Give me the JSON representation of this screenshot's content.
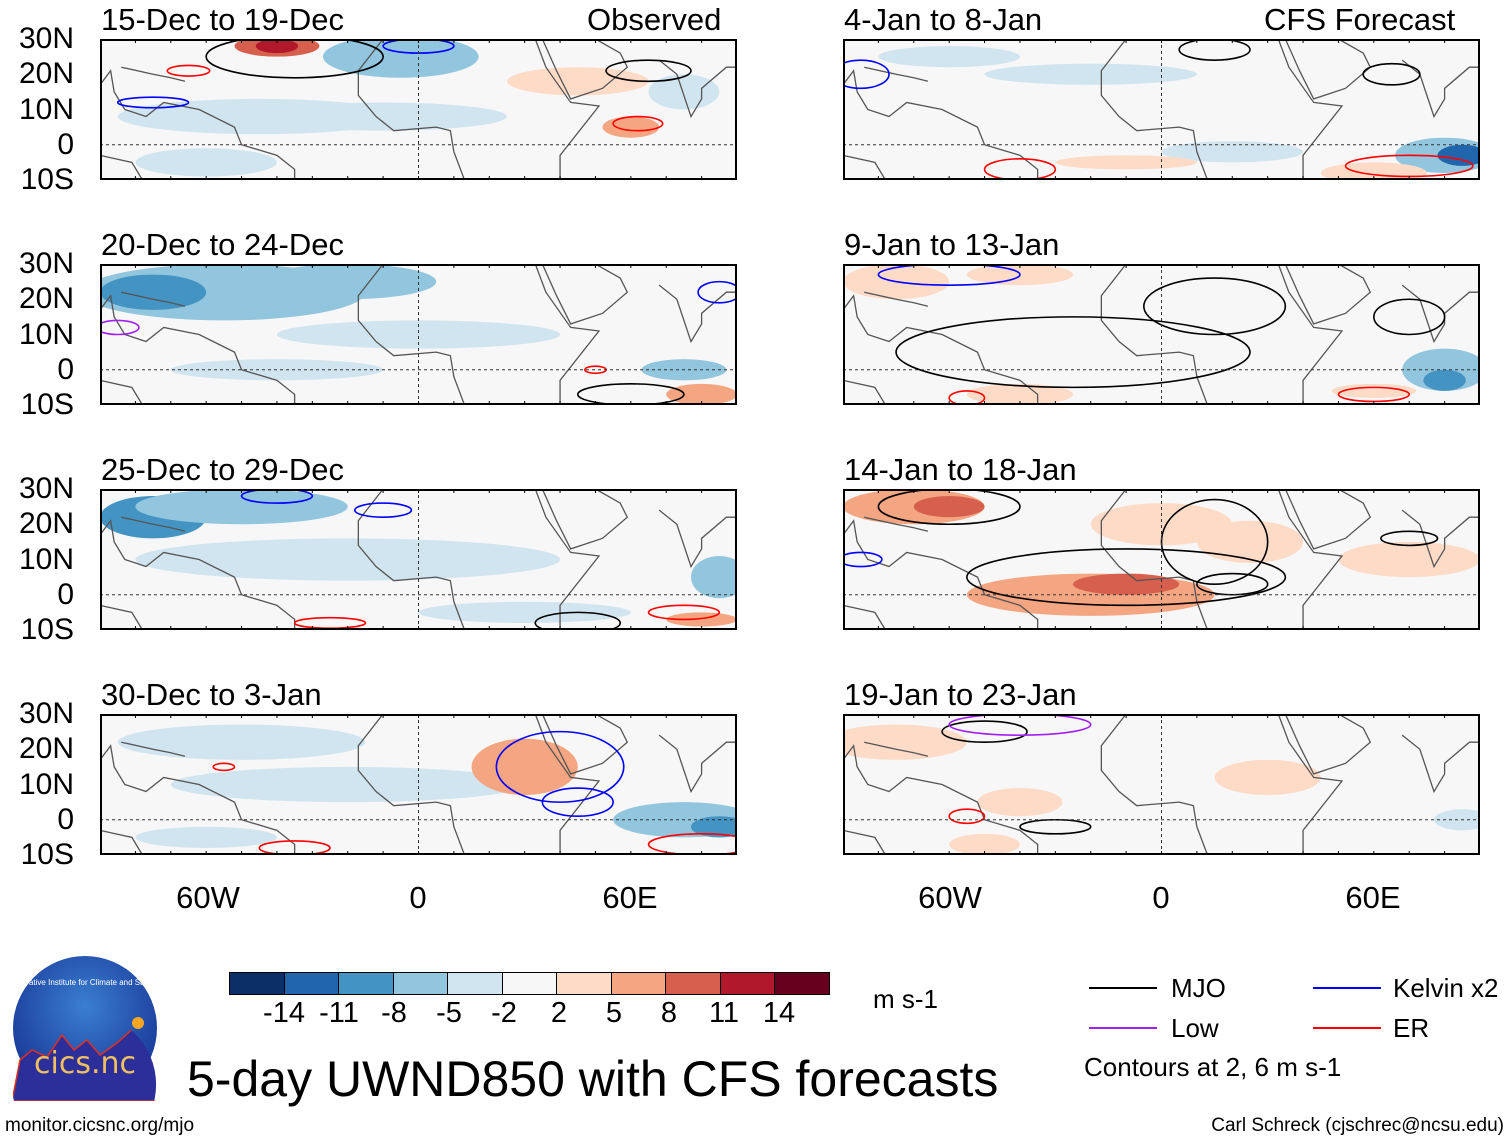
{
  "header": {
    "observed_label": "Observed",
    "forecast_label": "CFS Forecast"
  },
  "panels": [
    {
      "title": "15-Dec to 19-Dec",
      "type": "observed"
    },
    {
      "title": "20-Dec to 24-Dec",
      "type": "observed"
    },
    {
      "title": "25-Dec to 29-Dec",
      "type": "observed"
    },
    {
      "title": "30-Dec to 3-Jan",
      "type": "observed"
    },
    {
      "title": "4-Jan to 8-Jan",
      "type": "forecast"
    },
    {
      "title": "9-Jan to 13-Jan",
      "type": "forecast"
    },
    {
      "title": "14-Jan to 18-Jan",
      "type": "forecast"
    },
    {
      "title": "19-Jan to 23-Jan",
      "type": "forecast"
    }
  ],
  "lat_labels": [
    "30N",
    "20N",
    "10N",
    "0",
    "10S"
  ],
  "lon_labels": [
    "60W",
    "0",
    "60E"
  ],
  "colorbar": {
    "levels": [
      "-14",
      "-11",
      "-8",
      "-5",
      "-2",
      "2",
      "5",
      "8",
      "11",
      "14"
    ],
    "colors": [
      "#0b2f66",
      "#2166ac",
      "#4393c3",
      "#92c5de",
      "#d1e5f0",
      "#f7f7f7",
      "#fddbc7",
      "#f4a582",
      "#d6604d",
      "#b2182b",
      "#67001f"
    ],
    "units": "m s-1"
  },
  "legend": {
    "items": [
      {
        "label": "MJO",
        "color": "#000000"
      },
      {
        "label": "Low",
        "color": "#a020f0"
      },
      {
        "label": "Kelvin x2",
        "color": "#0000ff"
      },
      {
        "label": "ER",
        "color": "#ff0000"
      }
    ],
    "note": "Contours at 2, 6 m s-1"
  },
  "title": "5-day UWND850 with CFS forecasts",
  "footer": {
    "left": "monitor.cicsnc.org/mjo",
    "right": "Carl Schreck (cjschrec@ncsu.edu)"
  },
  "logo": {
    "text": "cics.nc",
    "ring_text": "Cooperative Institute for Climate and Satellites"
  }
}
